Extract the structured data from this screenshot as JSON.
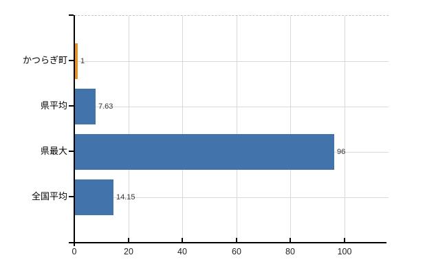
{
  "chart_data": {
    "type": "bar",
    "orientation": "horizontal",
    "title": "",
    "xlabel": "",
    "ylabel": "",
    "categories": [
      "かつらぎ町",
      "県平均",
      "県最大",
      "全国平均"
    ],
    "values": [
      1,
      7.63,
      96,
      14.15
    ],
    "value_labels": [
      "1",
      "7.63",
      "96",
      "14.15"
    ],
    "bar_colors": [
      "#ee8c28",
      "#4273ab",
      "#4273ab",
      "#4273ab"
    ],
    "x_tick_labels": [
      "0",
      "20",
      "40",
      "60",
      "80",
      "100"
    ],
    "x_tick_values": [
      0,
      20,
      40,
      60,
      80,
      100
    ],
    "xlim": [
      0,
      116.3
    ],
    "grid": "on",
    "legend": "none"
  },
  "colors": {
    "bar_blue": "#4273ab",
    "bar_orange": "#ee8c28",
    "gridline": "#d9d9d9",
    "plot_top_border": "#c4c4c4",
    "axis": "#000000",
    "tick_text": "#222222",
    "value_text": "#333333"
  }
}
